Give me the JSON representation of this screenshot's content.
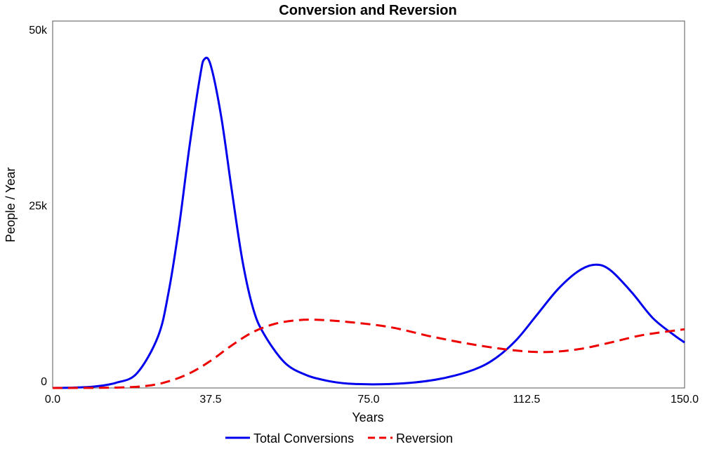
{
  "chart_data": {
    "type": "line",
    "title": "Conversion and Reversion",
    "xlabel": "Years",
    "ylabel": "People / Year",
    "xlim": [
      0,
      150
    ],
    "ylim": [
      0,
      50000
    ],
    "x_ticks": [
      {
        "v": 0,
        "label": "0.0"
      },
      {
        "v": 37.5,
        "label": "37.5"
      },
      {
        "v": 75,
        "label": "75.0"
      },
      {
        "v": 112.5,
        "label": "112.5"
      },
      {
        "v": 150,
        "label": "150.0"
      }
    ],
    "y_ticks": [
      {
        "v": 0,
        "label": "0"
      },
      {
        "v": 25000,
        "label": "25k"
      },
      {
        "v": 50000,
        "label": "50k"
      }
    ],
    "grid": false,
    "legend_position": "bottom-center",
    "series": [
      {
        "name": "Total Conversions",
        "color": "#0000ee",
        "style": "solid",
        "x": [
          0,
          5,
          10,
          15,
          20,
          25,
          27.5,
          30,
          32.5,
          35,
          36,
          37.5,
          40,
          42.5,
          45,
          47.5,
          50,
          55,
          60,
          65,
          70,
          77.5,
          85,
          92.5,
          100,
          105,
          110,
          115,
          120,
          125,
          129,
          132.5,
          137.5,
          142.5,
          147.5,
          150
        ],
        "y": [
          0,
          50,
          200,
          700,
          2000,
          7000,
          13000,
          22000,
          33000,
          42500,
          44800,
          44000,
          37000,
          27000,
          17500,
          11000,
          7500,
          3500,
          1800,
          1000,
          600,
          500,
          700,
          1300,
          2500,
          4000,
          6500,
          10000,
          13500,
          16000,
          16800,
          16000,
          13000,
          9500,
          7200,
          6200
        ]
      },
      {
        "name": "Reversion",
        "color": "#ee0000",
        "style": "dashed",
        "x": [
          0,
          15,
          22.5,
          27.5,
          32.5,
          37.5,
          42.5,
          47.5,
          52.5,
          57.5,
          62.5,
          70,
          80,
          90,
          100,
          110,
          117.5,
          125,
          132.5,
          140,
          150
        ],
        "y": [
          0,
          50,
          300,
          900,
          2000,
          3700,
          5800,
          7600,
          8700,
          9200,
          9300,
          9000,
          8300,
          7000,
          5900,
          5100,
          4900,
          5300,
          6200,
          7200,
          8000
        ]
      }
    ]
  }
}
